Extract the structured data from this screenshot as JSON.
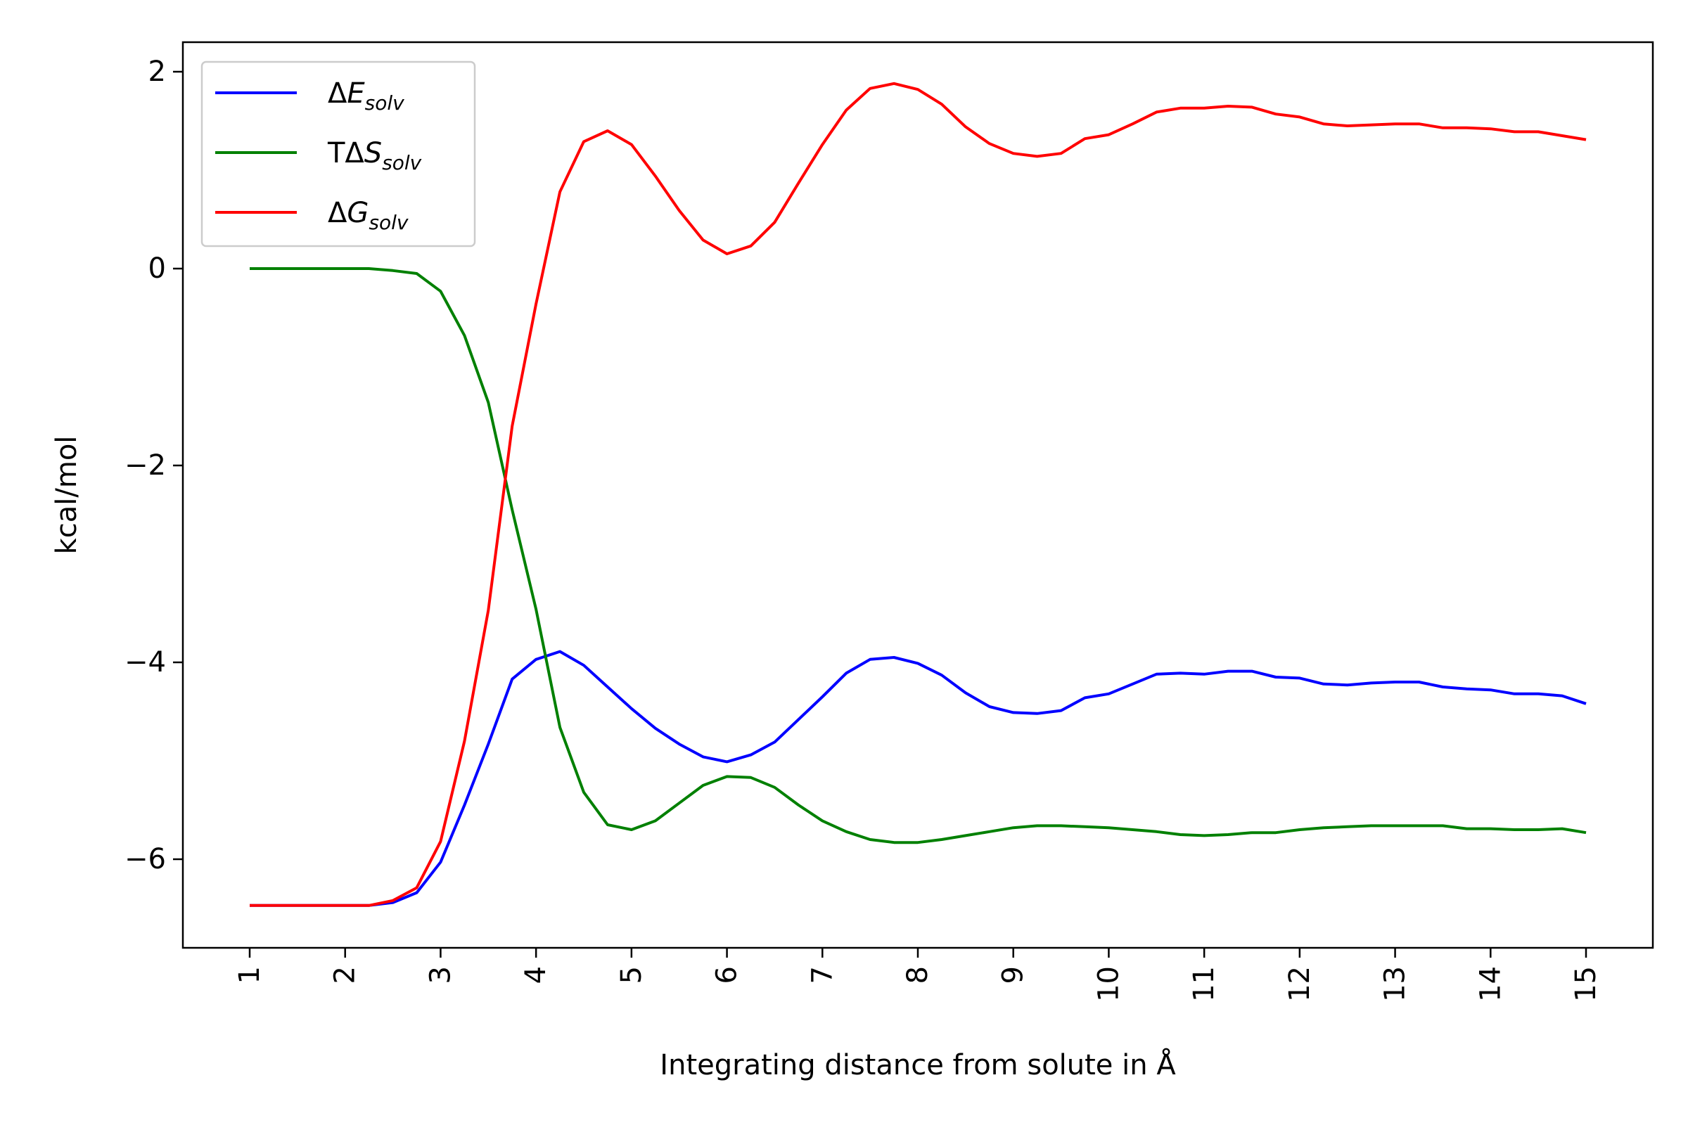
{
  "chart_data": {
    "type": "line",
    "xlabel": "Integrating distance from solute in Å",
    "ylabel": "kcal/mol",
    "xlim": [
      0.3,
      15.7
    ],
    "ylim": [
      -6.9,
      2.3
    ],
    "xticks": [
      1,
      2,
      3,
      4,
      5,
      6,
      7,
      8,
      9,
      10,
      11,
      12,
      13,
      14,
      15
    ],
    "xtick_labels": [
      "1",
      "2",
      "3",
      "4",
      "5",
      "6",
      "7",
      "8",
      "9",
      "10",
      "11",
      "12",
      "13",
      "14",
      "15"
    ],
    "xtick_rotation": 90,
    "yticks": [
      -6,
      -4,
      -2,
      0,
      2
    ],
    "ytick_labels": [
      "−6",
      "−4",
      "−2",
      "0",
      "2"
    ],
    "grid": false,
    "legend_position": "top-left",
    "x": [
      1,
      1.25,
      1.5,
      1.75,
      2,
      2.25,
      2.5,
      2.75,
      3,
      3.25,
      3.5,
      3.75,
      4,
      4.25,
      4.5,
      4.75,
      5,
      5.25,
      5.5,
      5.75,
      6,
      6.25,
      6.5,
      6.75,
      7,
      7.25,
      7.5,
      7.75,
      8,
      8.25,
      8.5,
      8.75,
      9,
      9.25,
      9.5,
      9.75,
      10,
      10.25,
      10.5,
      10.75,
      11,
      11.25,
      11.5,
      11.75,
      12,
      12.25,
      12.5,
      12.75,
      13,
      13.25,
      13.5,
      13.75,
      14,
      14.25,
      14.5,
      14.75,
      15
    ],
    "series": [
      {
        "name": "ΔE",
        "name_sub": "solv",
        "name_italic": true,
        "color": "#0000ff",
        "values": [
          -6.47,
          -6.47,
          -6.47,
          -6.47,
          -6.47,
          -6.47,
          -6.44,
          -6.34,
          -6.03,
          -5.45,
          -4.83,
          -4.17,
          -3.97,
          -3.89,
          -4.03,
          -4.25,
          -4.47,
          -4.67,
          -4.83,
          -4.96,
          -5.01,
          -4.94,
          -4.81,
          -4.58,
          -4.35,
          -4.11,
          -3.97,
          -3.95,
          -4.01,
          -4.13,
          -4.31,
          -4.45,
          -4.51,
          -4.52,
          -4.49,
          -4.36,
          -4.32,
          -4.22,
          -4.12,
          -4.11,
          -4.12,
          -4.09,
          -4.09,
          -4.15,
          -4.16,
          -4.22,
          -4.23,
          -4.21,
          -4.2,
          -4.2,
          -4.25,
          -4.27,
          -4.28,
          -4.32,
          -4.32,
          -4.34,
          -4.42
        ]
      },
      {
        "name": "TΔS",
        "name_sub": "solv",
        "name_italic": false,
        "color": "#008000",
        "values": [
          0,
          0,
          0,
          0,
          0,
          0,
          -0.02,
          -0.05,
          -0.23,
          -0.68,
          -1.36,
          -2.45,
          -3.46,
          -4.66,
          -5.32,
          -5.65,
          -5.7,
          -5.61,
          -5.43,
          -5.25,
          -5.16,
          -5.17,
          -5.27,
          -5.45,
          -5.61,
          -5.72,
          -5.8,
          -5.83,
          -5.83,
          -5.8,
          -5.76,
          -5.72,
          -5.68,
          -5.66,
          -5.66,
          -5.67,
          -5.68,
          -5.7,
          -5.72,
          -5.75,
          -5.76,
          -5.75,
          -5.73,
          -5.73,
          -5.7,
          -5.68,
          -5.67,
          -5.66,
          -5.66,
          -5.66,
          -5.66,
          -5.69,
          -5.69,
          -5.7,
          -5.7,
          -5.69,
          -5.73
        ]
      },
      {
        "name": "ΔG",
        "name_sub": "solv",
        "name_italic": true,
        "color": "#ff0000",
        "values": [
          -6.47,
          -6.47,
          -6.47,
          -6.47,
          -6.47,
          -6.47,
          -6.42,
          -6.29,
          -5.82,
          -4.8,
          -3.47,
          -1.6,
          -0.36,
          0.78,
          1.29,
          1.4,
          1.26,
          0.94,
          0.59,
          0.29,
          0.15,
          0.23,
          0.47,
          0.87,
          1.26,
          1.61,
          1.83,
          1.88,
          1.82,
          1.67,
          1.44,
          1.27,
          1.17,
          1.14,
          1.17,
          1.32,
          1.36,
          1.47,
          1.59,
          1.63,
          1.63,
          1.65,
          1.64,
          1.57,
          1.54,
          1.47,
          1.45,
          1.46,
          1.47,
          1.47,
          1.43,
          1.43,
          1.42,
          1.39,
          1.39,
          1.35,
          1.31
        ]
      }
    ]
  }
}
